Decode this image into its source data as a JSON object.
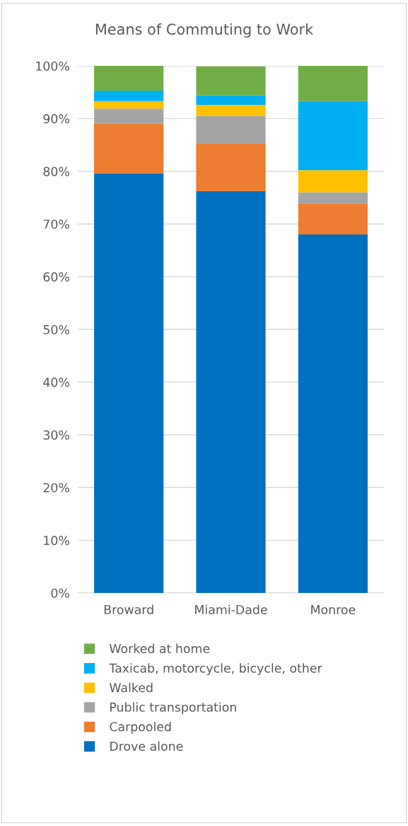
{
  "chart_data": {
    "type": "bar",
    "title": "Means of Commuting to Work",
    "stacked": true,
    "categories": [
      "Broward",
      "Miami-Dade",
      "Monroe"
    ],
    "series": [
      {
        "name": "Drove alone",
        "color": "#0070c0",
        "values": [
          79.6,
          76.2,
          68.0
        ]
      },
      {
        "name": "Carpooled",
        "color": "#ed7d31",
        "values": [
          9.4,
          9.0,
          5.9
        ]
      },
      {
        "name": "Public transportation",
        "color": "#a5a5a5",
        "values": [
          2.9,
          5.3,
          2.1
        ]
      },
      {
        "name": "Walked",
        "color": "#ffc000",
        "values": [
          1.4,
          2.1,
          4.2
        ]
      },
      {
        "name": "Taxicab, motorcycle, bicycle, other",
        "color": "#00b0f0",
        "values": [
          2.0,
          1.8,
          13.1
        ]
      },
      {
        "name": "Worked at home",
        "color": "#70ad47",
        "values": [
          4.7,
          5.5,
          6.7
        ]
      }
    ],
    "ylim": [
      0,
      100
    ],
    "yticks": [
      {
        "value": 0,
        "label": "0%"
      },
      {
        "value": 10,
        "label": "10%"
      },
      {
        "value": 20,
        "label": "20%"
      },
      {
        "value": 30,
        "label": "30%"
      },
      {
        "value": 40,
        "label": "40%"
      },
      {
        "value": 50,
        "label": "50%"
      },
      {
        "value": 60,
        "label": "60%"
      },
      {
        "value": 70,
        "label": "70%"
      },
      {
        "value": 80,
        "label": "80%"
      },
      {
        "value": 90,
        "label": "90%"
      },
      {
        "value": 100,
        "label": "100%"
      }
    ],
    "grid": "y",
    "legend": "bottom"
  }
}
